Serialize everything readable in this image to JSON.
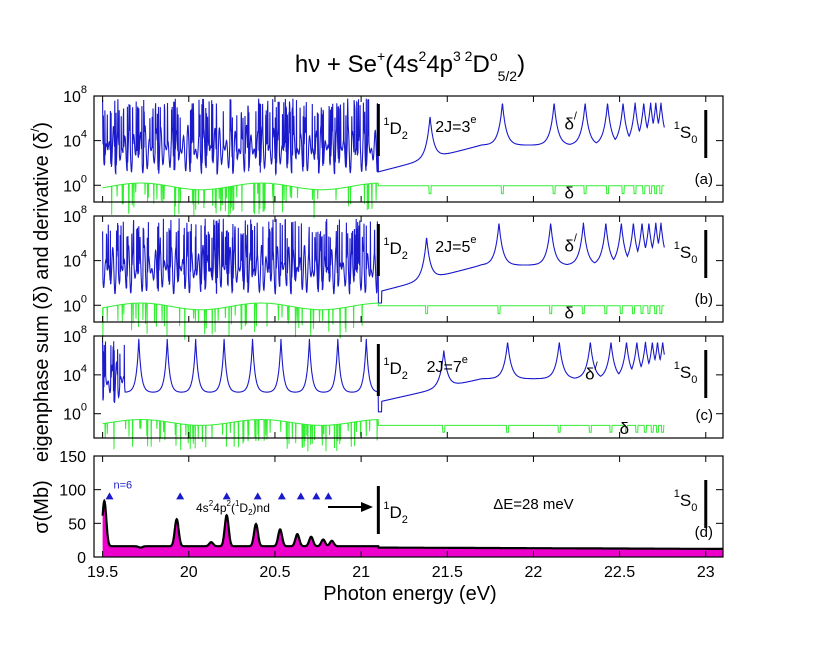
{
  "chart_data": {
    "type": "line",
    "title_parts": {
      "a": "hν + Se",
      "sup1": "+",
      "b": "(4s",
      "sup2": "2",
      "c": "4p",
      "sup3": "3 2",
      "d": "D",
      "sup4": "o",
      "sub": "5/2",
      "e": ")"
    },
    "xlabel": "Photon energy (eV)",
    "ylabel_top": "eigenphase sum (δ) and derivative (δ",
    "ylabel_top_prime": "/",
    "ylabel_top_close": ")",
    "ylabel_bottom": "σ(Mb)",
    "xlim": [
      19.45,
      23.1
    ],
    "x_ticks": [
      19.5,
      20,
      20.5,
      21,
      21.5,
      22,
      22.5,
      23
    ],
    "x_tick_labels": [
      "19.5",
      "20",
      "20.5",
      "21",
      "21.5",
      "22",
      "22.5",
      "23"
    ],
    "threshold_1D2": 21.1,
    "threshold_1S0": 23.0,
    "panels": [
      {
        "id": "a",
        "label": "(a)",
        "sym": "2J=3",
        "sym_sup": "e",
        "sym_x": 21.55,
        "y_ticks": [
          "10",
          "10",
          "10"
        ],
        "y_tick_exp": [
          "8",
          "4",
          "0"
        ],
        "ylim_log10": [
          -1.5,
          8
        ],
        "resonances_above": [
          21.4,
          21.82,
          22.12,
          22.3,
          22.43,
          22.52,
          22.59,
          22.64,
          22.68,
          22.71,
          22.74
        ],
        "delta_label": "δ",
        "deltap_label": "δ",
        "deltap_prime": "/",
        "d_label_x": 22.18,
        "dp_label_x": 22.18,
        "dp_y_log10": 5.0,
        "d_y_log10": -1.2
      },
      {
        "id": "b",
        "label": "(b)",
        "sym": "2J=5",
        "sym_sup": "e",
        "sym_x": 21.55,
        "y_ticks": [
          "10",
          "10",
          "10"
        ],
        "y_tick_exp": [
          "8",
          "4",
          "0"
        ],
        "ylim_log10": [
          -1.5,
          8
        ],
        "resonances_above": [
          21.38,
          21.8,
          22.1,
          22.29,
          22.42,
          22.51,
          22.58,
          22.63,
          22.67,
          22.71,
          22.74
        ],
        "delta_label": "δ",
        "deltap_label": "δ",
        "deltap_prime": "/",
        "d_label_x": 22.18,
        "dp_label_x": 22.18,
        "dp_y_log10": 4.8,
        "d_y_log10": -1.2
      },
      {
        "id": "c",
        "label": "(c)",
        "sym": "2J=7",
        "sym_sup": "e",
        "sym_x": 21.5,
        "y_ticks": [
          "10",
          "10",
          "10"
        ],
        "y_tick_exp": [
          "8",
          "4",
          "0"
        ],
        "ylim_log10": [
          -2.5,
          8
        ],
        "resonances_above": [
          21.48,
          21.85,
          22.15,
          22.33,
          22.45,
          22.54,
          22.6,
          22.65,
          22.69,
          22.72,
          22.75
        ],
        "delta_label": "δ",
        "deltap_label": "δ",
        "deltap_prime": "/",
        "d_label_x": 22.5,
        "dp_label_x": 22.3,
        "dp_y_log10": 3.5,
        "d_y_log10": -2.1
      }
    ],
    "cross_section": {
      "label": "(d)",
      "ylim": [
        0,
        150
      ],
      "y_ticks": [
        0,
        50,
        100,
        150
      ],
      "y_tick_labels": [
        "0",
        "50",
        "100",
        "150"
      ],
      "baseline_below": 16,
      "baseline_above": 14,
      "baseline_end": 12,
      "peaks": [
        {
          "x": 19.51,
          "y": 83
        },
        {
          "x": 19.72,
          "y": 14
        },
        {
          "x": 19.8,
          "y": 16
        },
        {
          "x": 19.93,
          "y": 56
        },
        {
          "x": 20.13,
          "y": 22
        },
        {
          "x": 20.22,
          "y": 62
        },
        {
          "x": 20.39,
          "y": 49
        },
        {
          "x": 20.53,
          "y": 41
        },
        {
          "x": 20.63,
          "y": 34
        },
        {
          "x": 20.71,
          "y": 30
        },
        {
          "x": 20.78,
          "y": 26
        },
        {
          "x": 20.83,
          "y": 24
        }
      ],
      "marker_x": [
        19.54,
        19.95,
        20.22,
        20.4,
        20.54,
        20.65,
        20.74,
        20.81
      ],
      "marker_y": 90,
      "n_label": "n=6",
      "series_label_parts": {
        "a": "4s",
        "s1": "2",
        "b": "4p",
        "s2": "2",
        "c": "(",
        "s3": "1",
        "d": "D",
        "sub": "2",
        "e": ")nd"
      },
      "delta_E": "ΔE=28 meV"
    },
    "threshold_labels": {
      "d2_sup": "1",
      "d2": "D",
      "d2_sub": "2",
      "s0_sup": "1",
      "s0": "S",
      "s0_sub": "0"
    },
    "colors": {
      "deltap": "#1a1acc",
      "delta": "#33ee33",
      "fill": "#ee00cc",
      "marker": "#1a1acc",
      "axis": "#000000"
    }
  }
}
